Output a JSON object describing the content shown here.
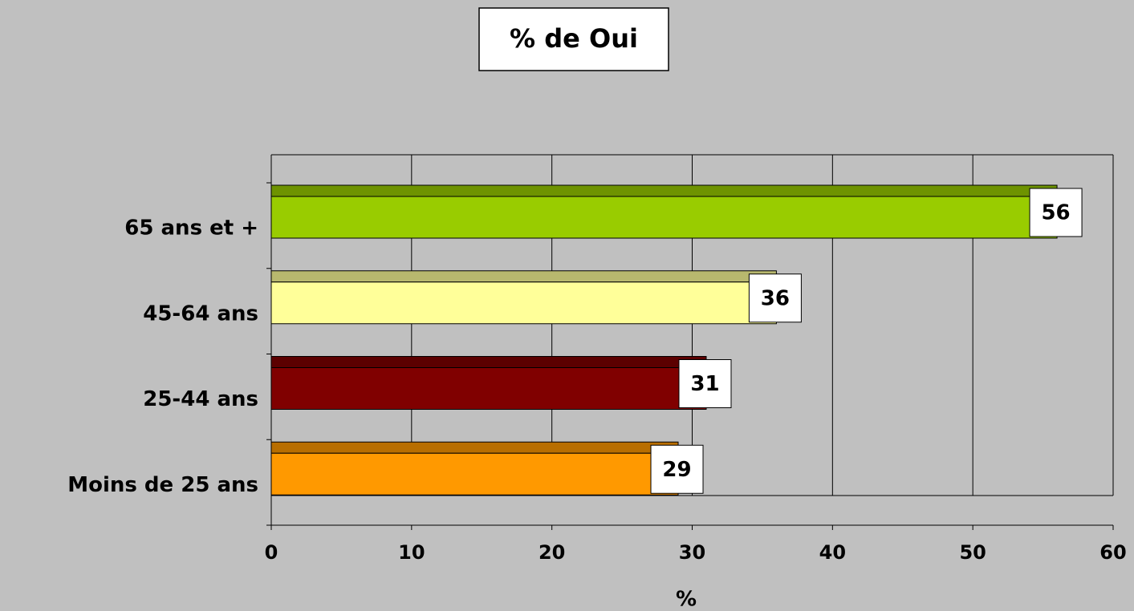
{
  "chart_data": {
    "type": "hbar3d",
    "title": "% de Oui",
    "x_label": "%",
    "categories": [
      "Moins de 25 ans",
      "25-44 ans",
      "45-64 ans",
      "65 ans et +"
    ],
    "values": [
      29,
      31,
      36,
      56
    ],
    "colors": [
      "#ff9900",
      "#800000",
      "#ffff99",
      "#99cc00"
    ],
    "xlim": [
      0,
      60
    ],
    "xticks": [
      0,
      10,
      20,
      30,
      40,
      50,
      60
    ],
    "grid": true
  }
}
